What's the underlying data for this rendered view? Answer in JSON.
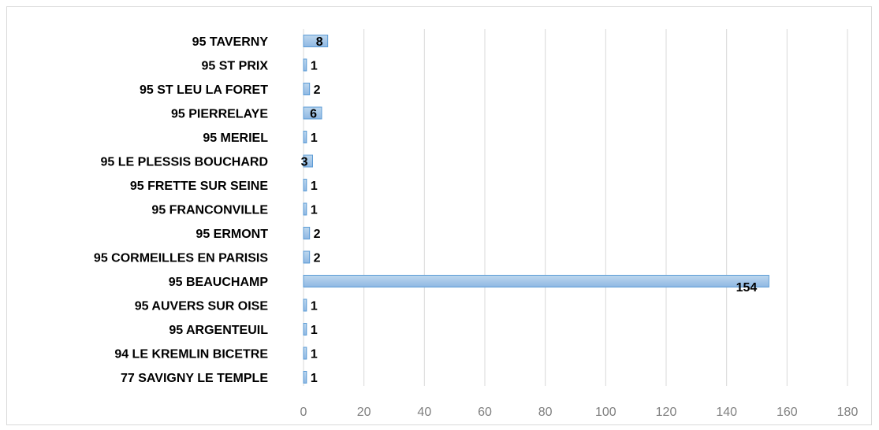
{
  "chart_data": {
    "type": "bar",
    "orientation": "horizontal",
    "title": "",
    "xlabel": "",
    "ylabel": "",
    "xlim": [
      0,
      180
    ],
    "ticks": [
      0,
      20,
      40,
      60,
      80,
      100,
      120,
      140,
      160,
      180
    ],
    "grid": true,
    "legend": "none",
    "bar_color": "#9dc3e6",
    "bar_edge_color": "#5b9bd5",
    "categories": [
      "95 TAVERNY",
      "95 ST PRIX",
      "95 ST LEU LA FORET",
      "95 PIERRELAYE",
      "95 MERIEL",
      "95 LE PLESSIS BOUCHARD",
      "95 FRETTE SUR SEINE",
      "95 FRANCONVILLE",
      "95 ERMONT",
      "95 CORMEILLES EN PARISIS",
      "95 BEAUCHAMP",
      "95 AUVERS SUR OISE",
      "95 ARGENTEUIL",
      "94 LE KREMLIN BICETRE",
      "77 SAVIGNY LE TEMPLE"
    ],
    "values": [
      8,
      1,
      2,
      6,
      1,
      3,
      1,
      1,
      2,
      2,
      154,
      1,
      1,
      1,
      1
    ]
  }
}
